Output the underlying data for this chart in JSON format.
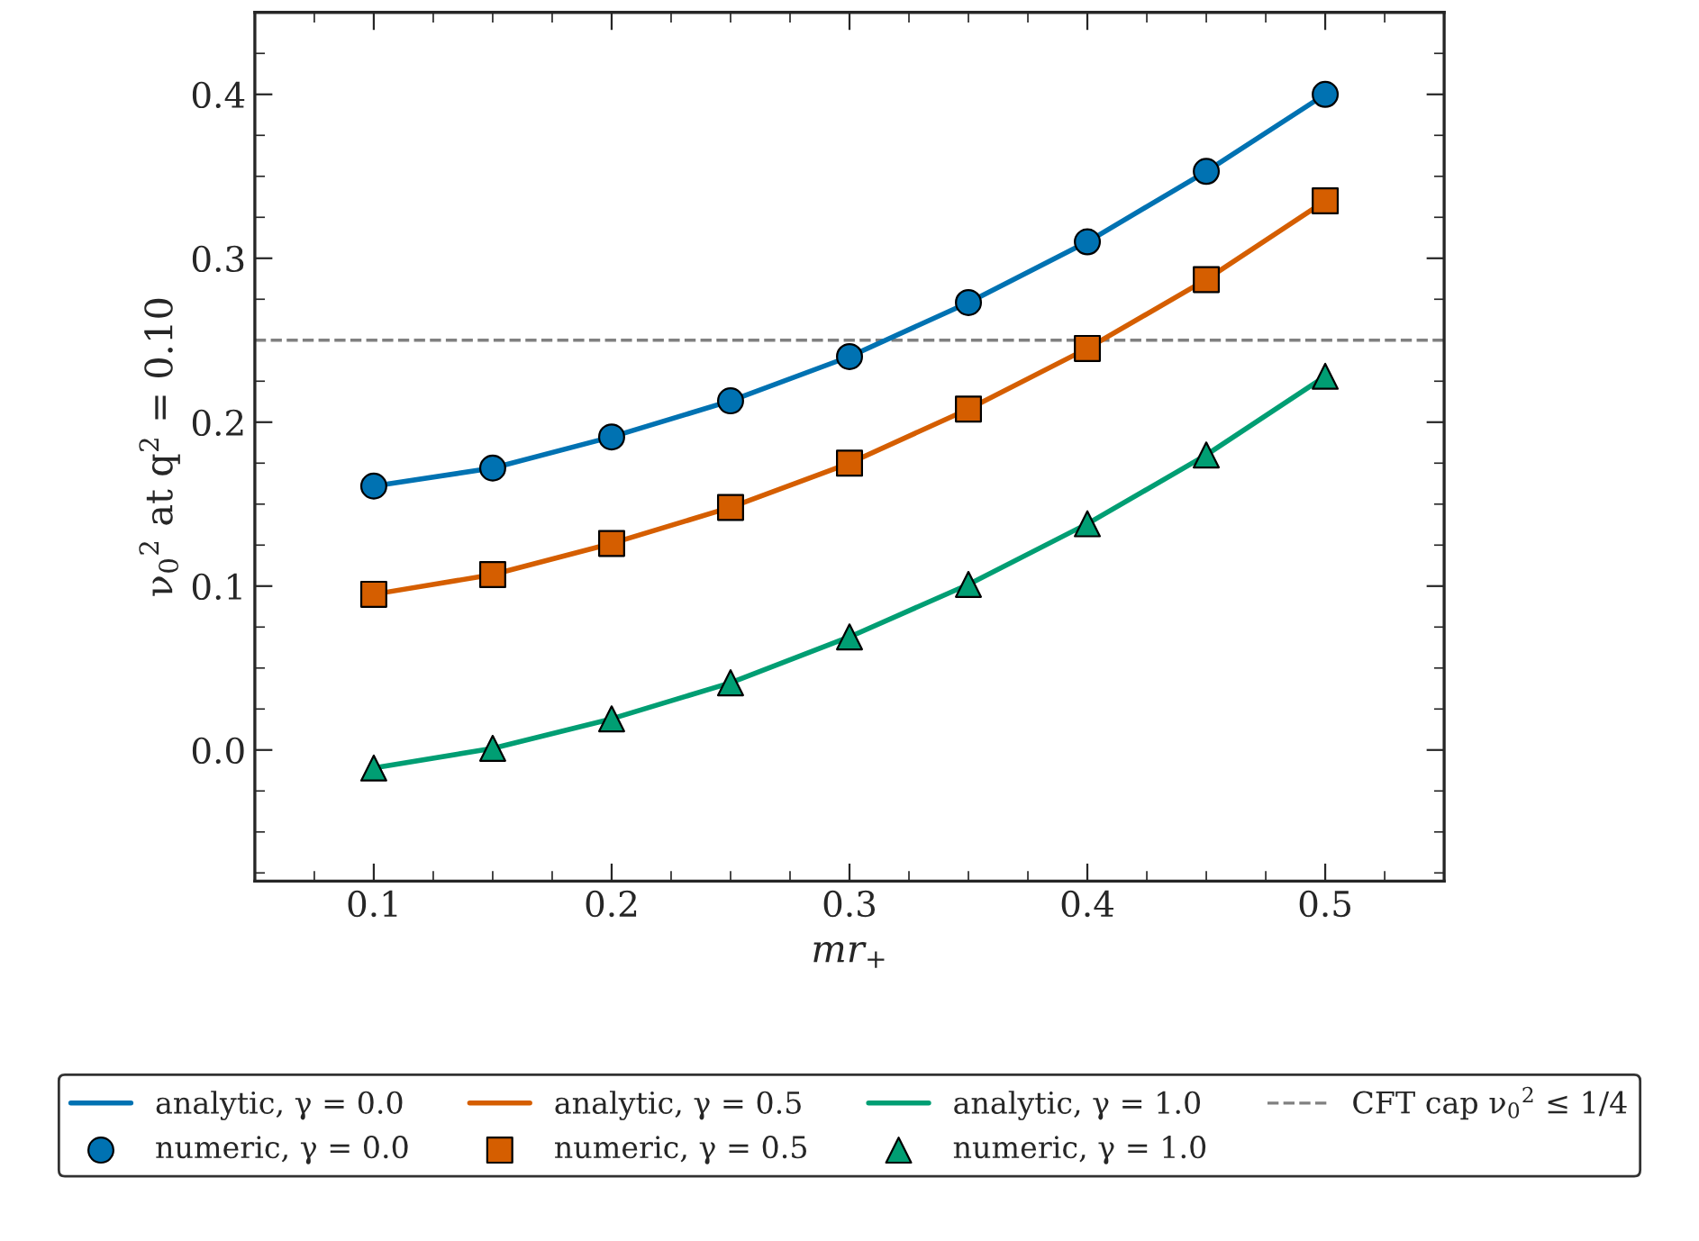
{
  "chart_data": {
    "type": "line",
    "xlabel": "mr$_{+}$",
    "ylabel": "ν$_{0}$$^{2}$ at q$^{2}$ = 0.10",
    "x": [
      0.1,
      0.15,
      0.2,
      0.25,
      0.3,
      0.35,
      0.4,
      0.45,
      0.5
    ],
    "series": [
      {
        "name": "analytic, γ = 0.0",
        "color": "#0072b2",
        "marker": "none",
        "values": [
          0.161,
          0.172,
          0.191,
          0.213,
          0.24,
          0.273,
          0.31,
          0.353,
          0.4
        ]
      },
      {
        "name": "numeric, γ = 0.0",
        "type": "scatter",
        "color": "#0072b2",
        "marker": "circle",
        "values": [
          0.161,
          0.172,
          0.191,
          0.213,
          0.24,
          0.273,
          0.31,
          0.353,
          0.4
        ]
      },
      {
        "name": "analytic, γ = 0.5",
        "color": "#d55e00",
        "marker": "none",
        "values": [
          0.095,
          0.107,
          0.126,
          0.148,
          0.175,
          0.208,
          0.245,
          0.287,
          0.335
        ]
      },
      {
        "name": "numeric, γ = 0.5",
        "type": "scatter",
        "color": "#d55e00",
        "marker": "square",
        "values": [
          0.095,
          0.107,
          0.126,
          0.148,
          0.175,
          0.208,
          0.245,
          0.287,
          0.335
        ]
      },
      {
        "name": "analytic, γ = 1.0",
        "color": "#009e73",
        "marker": "none",
        "values": [
          -0.011,
          0.001,
          0.019,
          0.041,
          0.069,
          0.101,
          0.138,
          0.18,
          0.228
        ]
      },
      {
        "name": "numeric, γ = 1.0",
        "type": "scatter",
        "color": "#009e73",
        "marker": "triangle",
        "values": [
          -0.011,
          0.001,
          0.019,
          0.041,
          0.069,
          0.101,
          0.138,
          0.18,
          0.228
        ]
      }
    ],
    "ref_lines": [
      {
        "axis": "y",
        "value": 0.25,
        "label": "CFT cap ν$_{0}$$^{2}$ ≤ 1/4",
        "color": "#808080",
        "line_style": "dashed"
      }
    ],
    "xlim": [
      0.05,
      0.55
    ],
    "xticks": [
      0.1,
      0.2,
      0.3,
      0.4,
      0.5
    ],
    "ylim": [
      -0.08,
      0.45
    ],
    "yticks": [
      {
        "value": 0,
        "label": "0.0"
      },
      0.1,
      0.2,
      0.3,
      0.4
    ],
    "grid": false,
    "legend": "bottom"
  }
}
